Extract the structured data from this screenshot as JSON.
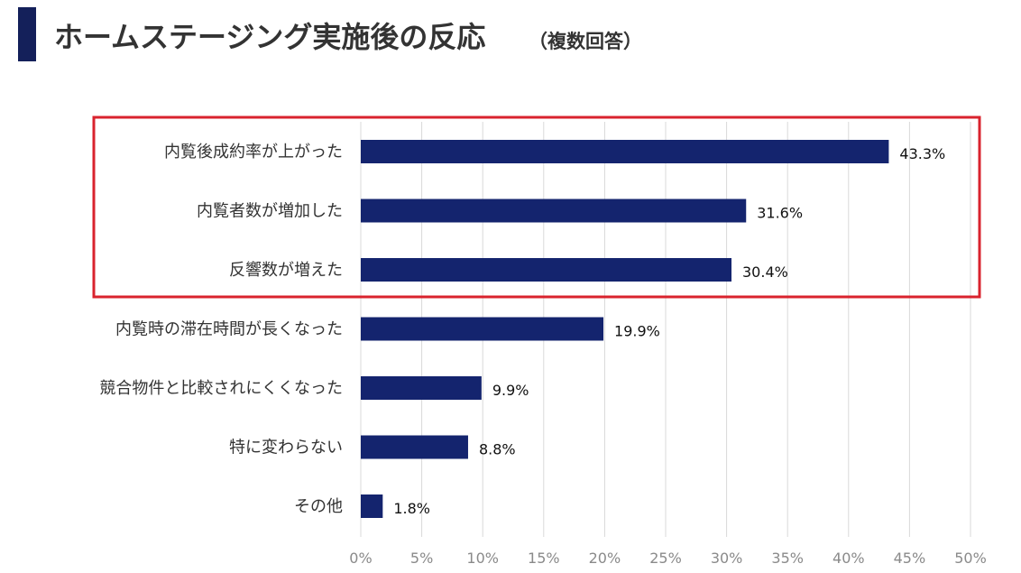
{
  "header": {
    "title": "ホームステージング実施後の反応",
    "subtitle": "（複数回答）"
  },
  "colors": {
    "bar": "#14246e",
    "highlight_box": "#d9232e",
    "title_accent": "#14205a"
  },
  "chart_data": {
    "type": "bar",
    "orientation": "horizontal",
    "title": "ホームステージング実施後の反応",
    "subtitle": "（複数回答）",
    "categories": [
      "内覧後成約率が上がった",
      "内覧者数が増加した",
      "反響数が増えた",
      "内覧時の滞在時間が長くなった",
      "競合物件と比較されにくくなった",
      "特に変わらない",
      "その他"
    ],
    "values": [
      43.3,
      31.6,
      30.4,
      19.9,
      9.9,
      8.8,
      1.8
    ],
    "value_labels": [
      "43.3%",
      "31.6%",
      "30.4%",
      "19.9%",
      "9.9%",
      "8.8%",
      "1.8%"
    ],
    "unit": "%",
    "xlim": [
      0,
      50
    ],
    "xticks": [
      "0%",
      "5%",
      "10%",
      "15%",
      "20%",
      "25%",
      "30%",
      "35%",
      "40%",
      "45%",
      "50%"
    ],
    "grid": "vertical",
    "highlighted_categories": [
      "内覧後成約率が上がった",
      "内覧者数が増加した",
      "反響数が増えた"
    ]
  }
}
